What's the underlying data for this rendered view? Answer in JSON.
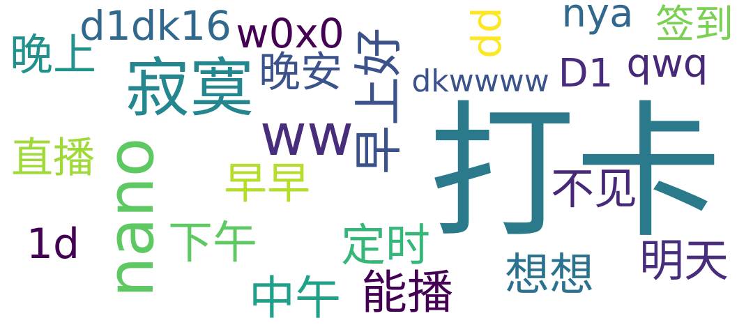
{
  "words": [
    {
      "text": "打卡",
      "color": "#2b7a8c",
      "rotated": false
    },
    {
      "text": "寂寞",
      "color": "#24868e",
      "rotated": false
    },
    {
      "text": "nano",
      "color": "#5ec962",
      "rotated": true
    },
    {
      "text": "ww",
      "color": "#472d7b",
      "rotated": false
    },
    {
      "text": "早上好",
      "color": "#3b528b",
      "rotated": true
    },
    {
      "text": "d1dk16",
      "color": "#31688e",
      "rotated": false
    },
    {
      "text": "w0x0",
      "color": "#440154",
      "rotated": false
    },
    {
      "text": "晚上",
      "color": "#21918c",
      "rotated": false
    },
    {
      "text": "晚安",
      "color": "#3b528b",
      "rotated": false
    },
    {
      "text": "dd",
      "color": "#fde725",
      "rotated": true
    },
    {
      "text": "nya",
      "color": "#31688e",
      "rotated": false
    },
    {
      "text": "签到",
      "color": "#7ad151",
      "rotated": false
    },
    {
      "text": "qwq",
      "color": "#482878",
      "rotated": false
    },
    {
      "text": "dkwwww",
      "color": "#3b528b",
      "rotated": false
    },
    {
      "text": "D1",
      "color": "#472d7b",
      "rotated": false
    },
    {
      "text": "直播",
      "color": "#a0da39",
      "rotated": false
    },
    {
      "text": "早早",
      "color": "#b5de2b",
      "rotated": false
    },
    {
      "text": "不见",
      "color": "#482878",
      "rotated": false
    },
    {
      "text": "1d",
      "color": "#440154",
      "rotated": false
    },
    {
      "text": "下午",
      "color": "#5ec962",
      "rotated": false
    },
    {
      "text": "定时",
      "color": "#35b779",
      "rotated": false
    },
    {
      "text": "明天",
      "color": "#472d7b",
      "rotated": false
    },
    {
      "text": "想想",
      "color": "#2c728e",
      "rotated": false
    },
    {
      "text": "中午",
      "color": "#1fa088",
      "rotated": false
    },
    {
      "text": "能播",
      "color": "#440154",
      "rotated": false
    }
  ]
}
